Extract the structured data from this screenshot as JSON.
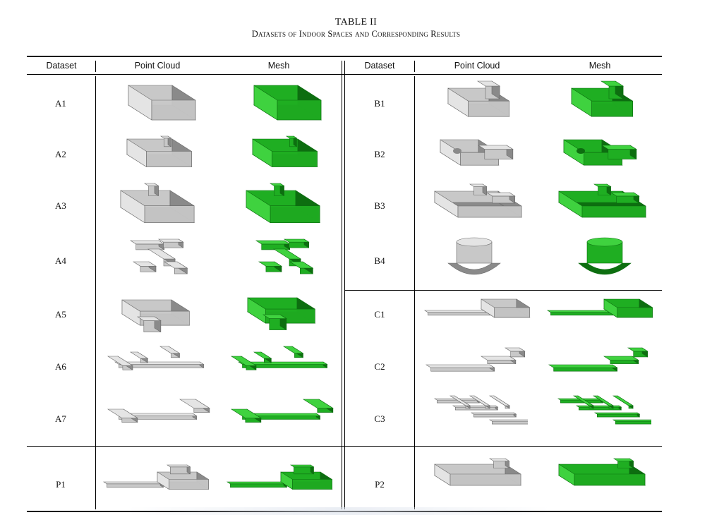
{
  "caption": {
    "table_number": "TABLE II",
    "title": "Datasets of Indoor Spaces and Corresponding Results"
  },
  "headers": {
    "dataset": "Dataset",
    "point_cloud": "Point Cloud",
    "mesh": "Mesh"
  },
  "left_rows": [
    {
      "label": "A1",
      "shape": "box"
    },
    {
      "label": "A2",
      "shape": "box-irregular"
    },
    {
      "label": "A3",
      "shape": "box-wide"
    },
    {
      "label": "A4",
      "shape": "maze"
    },
    {
      "label": "A5",
      "shape": "box-lshape"
    },
    {
      "label": "A6",
      "shape": "corridor-e"
    },
    {
      "label": "A7",
      "shape": "corridor-h"
    },
    {
      "label": "P1",
      "shape": "long-rooms"
    }
  ],
  "right_rows": [
    {
      "label": "B1",
      "shape": "heart-box"
    },
    {
      "label": "B2",
      "shape": "curved-room"
    },
    {
      "label": "B3",
      "shape": "multi-room"
    },
    {
      "label": "B4",
      "shape": "cylinder"
    },
    {
      "label": "C1",
      "shape": "ramp-room"
    },
    {
      "label": "C2",
      "shape": "corridor-slant"
    },
    {
      "label": "C3",
      "shape": "grid-maze"
    },
    {
      "label": "P2",
      "shape": "office-block"
    }
  ],
  "colors": {
    "point_cloud_fill": "#c8c8c8",
    "point_cloud_dark": "#8a8a8a",
    "mesh_fill": "#1fae22",
    "mesh_dark": "#0d6e10",
    "mesh_light": "#3fd23f"
  }
}
